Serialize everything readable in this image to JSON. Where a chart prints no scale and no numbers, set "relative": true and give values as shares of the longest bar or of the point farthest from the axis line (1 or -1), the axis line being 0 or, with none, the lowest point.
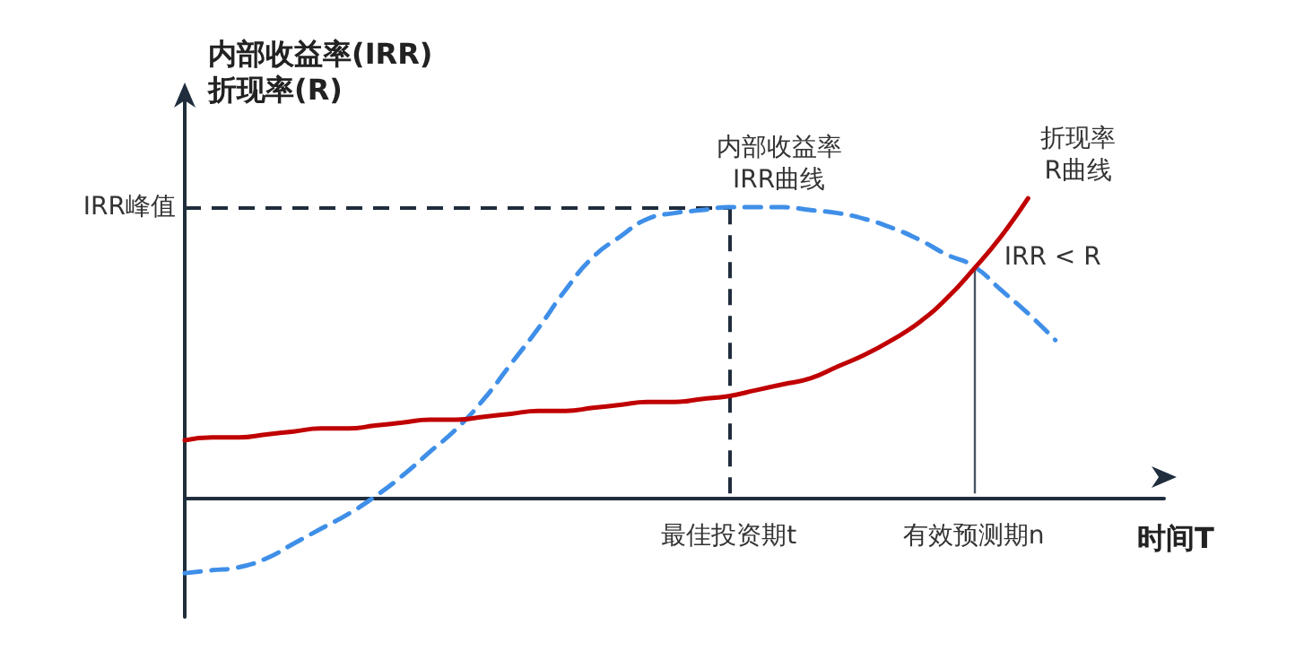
{
  "chart_data": {
    "type": "line",
    "relative": true,
    "ylabel": "内部收益率(IRR)\n折现率(R)",
    "xlabel": "时间T",
    "categories": [
      null,
      null,
      null,
      null,
      null,
      null,
      null,
      null,
      null,
      null,
      null,
      null,
      null,
      null,
      null,
      null,
      null,
      null,
      null,
      null,
      "最佳投资期t",
      null,
      null,
      null,
      null,
      null,
      null,
      null,
      null,
      "有效预测期n",
      null,
      null,
      null,
      null,
      null,
      null,
      null
    ],
    "series": [
      {
        "color": "#3f8fe8",
        "line_style": "dashed",
        "values": [
          -0.27,
          -0.26,
          -0.25,
          -0.22,
          -0.17,
          -0.12,
          -0.07,
          -0.01,
          0.06,
          0.14,
          0.22,
          0.32,
          0.44,
          0.56,
          0.69,
          0.8,
          0.87,
          0.93,
          0.95,
          0.96,
          0.97,
          0.97,
          0.97,
          0.96,
          0.95,
          0.93,
          0.9,
          0.86,
          0.81,
          0.77,
          0.69,
          0.61,
          0.52,
          null,
          null,
          null,
          null
        ]
      },
      {
        "color": "#c00000",
        "line_style": "solid",
        "values": [
          0.18,
          0.19,
          0.19,
          0.2,
          0.21,
          0.22,
          0.22,
          0.23,
          0.24,
          0.25,
          0.25,
          0.26,
          0.27,
          0.28,
          0.28,
          0.29,
          0.3,
          0.31,
          0.31,
          0.32,
          0.33,
          0.35,
          0.37,
          0.39,
          0.43,
          0.47,
          0.52,
          0.58,
          0.66,
          0.76,
          0.87,
          1,
          null,
          null,
          null,
          null,
          null
        ]
      }
    ],
    "ref_lines": [
      {
        "axis": "y",
        "value": 0.97,
        "label": "IRR峰值",
        "color": "#1f2d3d",
        "line_style": "dashed"
      },
      {
        "axis": "x",
        "value": "最佳投资期t",
        "color": "#1f2d3d",
        "line_style": "dashed"
      },
      {
        "axis": "x",
        "value": "有效预测期n",
        "color": "#4a5563",
        "line_style": "solid"
      }
    ],
    "annotations": [
      "内部收益率\nIRR曲线",
      "折现率\nR曲线",
      {
        "text": "IRR < R",
        "x": "有效预测期n",
        "y": 0.8
      }
    ]
  }
}
